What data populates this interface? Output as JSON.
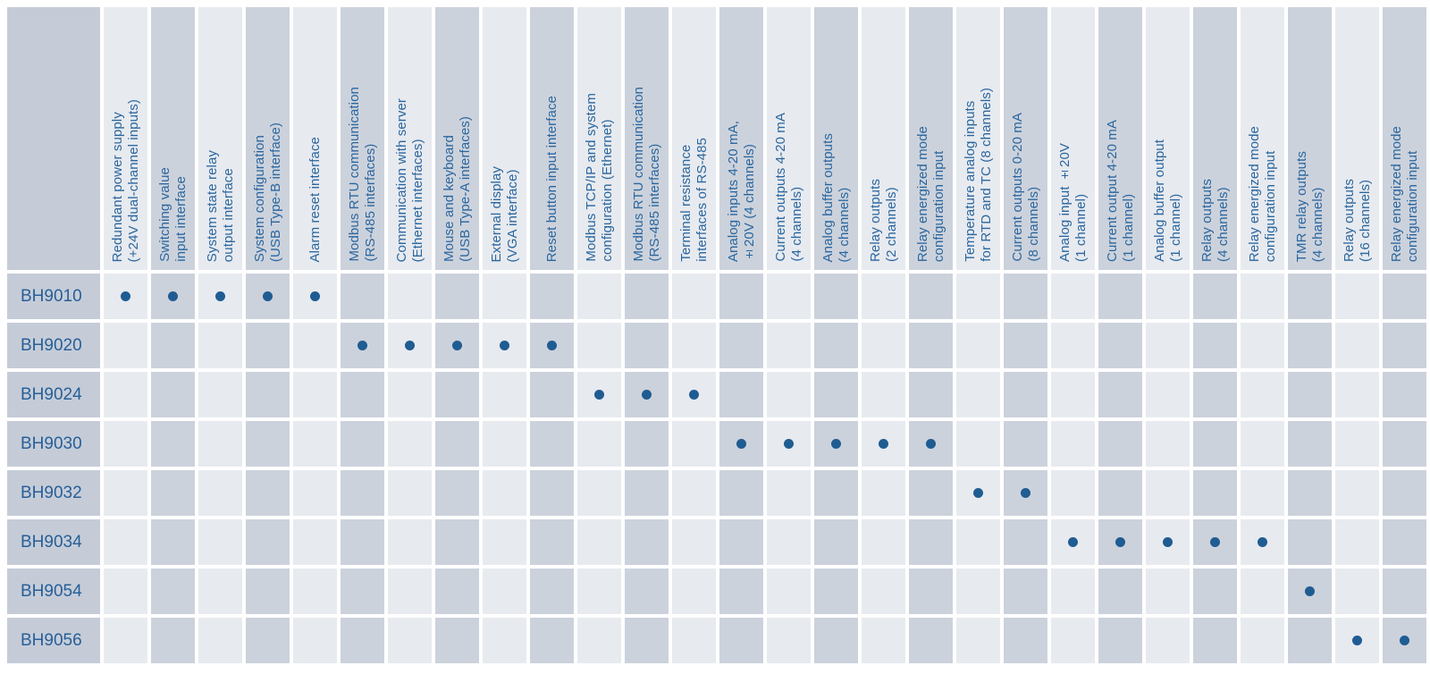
{
  "colors": {
    "header_text": "#2a669e",
    "row_label_text": "#275f97",
    "dot": "#1f5c92",
    "column_light": "#e7eaef",
    "column_dark": "#ccd2dc",
    "label_column": "#c5ccd8",
    "background": "#ffffff"
  },
  "table": {
    "type": "table",
    "corner_label": "",
    "columns": [
      {
        "label": "Redundant power supply\n(+24V dual-channel inputs)"
      },
      {
        "label": "Switching value\ninput interface"
      },
      {
        "label": "System state relay\noutput interface"
      },
      {
        "label": "System configuration\n(USB Type-B interface)"
      },
      {
        "label": "Alarm reset interface"
      },
      {
        "label": "Modbus RTU communication\n(RS-485 interfaces)"
      },
      {
        "label": "Communication with server\n(Ethernet interfaces)"
      },
      {
        "label": "Mouse and keyboard\n(USB Type-A interfaces)"
      },
      {
        "label": "External display\n(VGA interface)"
      },
      {
        "label": "Reset button input interface"
      },
      {
        "label": "Modbus TCP/IP and system\nconfiguration (Ethernet)"
      },
      {
        "label": "Modbus RTU communication\n(RS-485 interfaces)"
      },
      {
        "label": "Terminal resistance\ninterfaces of RS-485"
      },
      {
        "label": "Analog inputs 4-20 mA,\n±20V (4 channels)"
      },
      {
        "label": "Current outputs 4-20 mA\n(4 channels)"
      },
      {
        "label": "Analog buffer outputs\n(4 channels)"
      },
      {
        "label": "Relay outputs\n(2 channels)"
      },
      {
        "label": "Relay energized mode\nconfiguration input"
      },
      {
        "label": "Temperature analog inputs\nfor RTD and TC (8 channels)"
      },
      {
        "label": "Current outputs 0-20 mA\n(8 channels)"
      },
      {
        "label": "Analog input ±20V\n(1 channel)"
      },
      {
        "label": "Current output 4-20 mA\n(1 channel)"
      },
      {
        "label": "Analog buffer output\n(1 channel)"
      },
      {
        "label": "Relay outputs\n(4 channels)"
      },
      {
        "label": "Relay energized mode\nconfiguration input"
      },
      {
        "label": "TMR relay outputs\n(4 channels)"
      },
      {
        "label": "Relay outputs\n(16 channels)"
      },
      {
        "label": "Relay energized mode\nconfiguration input"
      }
    ],
    "rows": [
      {
        "model": "BH9010",
        "features": [
          1,
          2,
          3,
          4,
          5
        ]
      },
      {
        "model": "BH9020",
        "features": [
          6,
          7,
          8,
          9,
          10
        ]
      },
      {
        "model": "BH9024",
        "features": [
          11,
          12,
          13
        ]
      },
      {
        "model": "BH9030",
        "features": [
          14,
          15,
          16,
          17,
          18
        ]
      },
      {
        "model": "BH9032",
        "features": [
          19,
          20
        ]
      },
      {
        "model": "BH9034",
        "features": [
          21,
          22,
          23,
          24,
          25
        ]
      },
      {
        "model": "BH9054",
        "features": [
          26
        ]
      },
      {
        "model": "BH9056",
        "features": [
          27,
          28
        ]
      }
    ]
  }
}
